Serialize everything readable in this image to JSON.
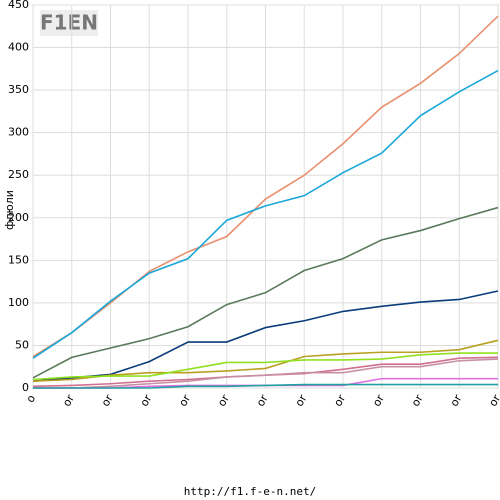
{
  "logo": "F1EN",
  "footer": "http://f1.f-e-n.net/",
  "chart_data": {
    "type": "line",
    "ylabel": "флюли",
    "categories": [
      "o",
      "or",
      "or",
      "or",
      "or",
      "or",
      "or",
      "or",
      "or",
      "or",
      "or",
      "or",
      "or"
    ],
    "ylim": [
      0,
      450
    ],
    "yticks": [
      0,
      50,
      100,
      150,
      200,
      250,
      300,
      350,
      400,
      450
    ],
    "grid": true,
    "series": [
      {
        "color": "#e8906f",
        "values": [
          37,
          65,
          100,
          137,
          160,
          178,
          222,
          250,
          287,
          330,
          358,
          393,
          437
        ]
      },
      {
        "color": "#1aa8d8",
        "values": [
          35,
          65,
          102,
          135,
          152,
          197,
          214,
          226,
          253,
          276,
          320,
          348,
          373
        ]
      },
      {
        "color": "#5a7a5a",
        "values": [
          12,
          36,
          47,
          58,
          72,
          98,
          112,
          138,
          152,
          174,
          185,
          199,
          212
        ]
      },
      {
        "color": "#0a3c7a",
        "values": [
          8,
          12,
          16,
          31,
          54,
          54,
          71,
          79,
          90,
          96,
          101,
          104,
          114
        ]
      },
      {
        "color": "#b8a020",
        "values": [
          8,
          10,
          15,
          18,
          18,
          20,
          23,
          37,
          40,
          42,
          42,
          45,
          56
        ]
      },
      {
        "color": "#90e020",
        "values": [
          10,
          13,
          14,
          14,
          22,
          30,
          30,
          33,
          33,
          34,
          39,
          41,
          41
        ]
      },
      {
        "color": "#d07090",
        "values": [
          2,
          3,
          5,
          8,
          10,
          13,
          15,
          17,
          22,
          28,
          28,
          35,
          36
        ]
      },
      {
        "color": "#c890a8",
        "values": [
          0,
          0,
          2,
          5,
          8,
          13,
          15,
          18,
          18,
          25,
          25,
          32,
          34
        ]
      },
      {
        "color": "#e070e0",
        "values": [
          0,
          0,
          0,
          2,
          3,
          3,
          3,
          3,
          3,
          11,
          11,
          11,
          11
        ]
      },
      {
        "color": "#20a0a0",
        "values": [
          0,
          0,
          0,
          0,
          2,
          2,
          3,
          4,
          4,
          4,
          4,
          4,
          4
        ]
      }
    ]
  }
}
